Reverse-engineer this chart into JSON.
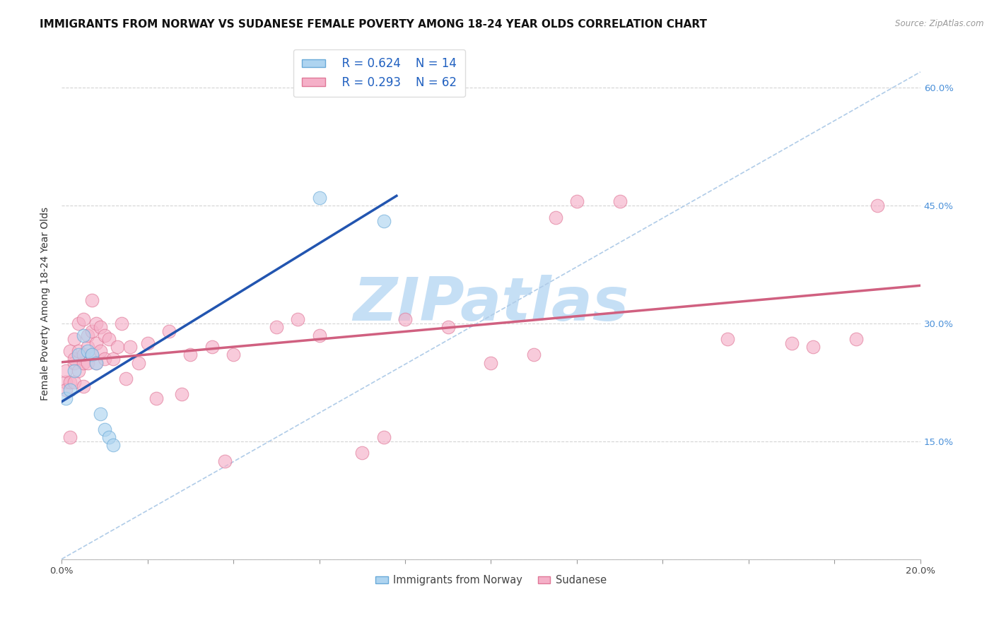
{
  "title": "IMMIGRANTS FROM NORWAY VS SUDANESE FEMALE POVERTY AMONG 18-24 YEAR OLDS CORRELATION CHART",
  "source": "Source: ZipAtlas.com",
  "ylabel": "Female Poverty Among 18-24 Year Olds",
  "xlim": [
    0.0,
    0.2
  ],
  "ylim": [
    0.0,
    0.65
  ],
  "ytick_vals": [
    0.0,
    0.15,
    0.3,
    0.45,
    0.6
  ],
  "ytick_labels": [
    "",
    "15.0%",
    "30.0%",
    "45.0%",
    "60.0%"
  ],
  "xtick_vals": [
    0.0,
    0.02,
    0.04,
    0.06,
    0.08,
    0.1,
    0.12,
    0.14,
    0.16,
    0.18,
    0.2
  ],
  "xtick_labels": [
    "0.0%",
    "",
    "",
    "",
    "",
    "",
    "",
    "",
    "",
    "",
    "20.0%"
  ],
  "watermark_text": "ZIPatlas",
  "watermark_color": "#c5dff5",
  "legend_R1": "R = 0.624",
  "legend_N1": "N = 14",
  "legend_R2": "R = 0.293",
  "legend_N2": "N = 62",
  "legend_label1": "Immigrants from Norway",
  "legend_label2": "Sudanese",
  "blue_scatter_face": "#aed4f0",
  "blue_scatter_edge": "#6aaad8",
  "pink_scatter_face": "#f5b0c8",
  "pink_scatter_edge": "#e07898",
  "blue_line_color": "#2255b0",
  "pink_line_color": "#d06080",
  "dashed_color": "#b0cce8",
  "norway_x": [
    0.001,
    0.002,
    0.003,
    0.004,
    0.005,
    0.006,
    0.007,
    0.008,
    0.009,
    0.01,
    0.011,
    0.012,
    0.06,
    0.075
  ],
  "norway_y": [
    0.205,
    0.215,
    0.24,
    0.26,
    0.285,
    0.265,
    0.26,
    0.25,
    0.185,
    0.165,
    0.155,
    0.145,
    0.46,
    0.43
  ],
  "sudan_x": [
    0.001,
    0.001,
    0.001,
    0.002,
    0.002,
    0.002,
    0.003,
    0.003,
    0.003,
    0.003,
    0.004,
    0.004,
    0.004,
    0.005,
    0.005,
    0.005,
    0.005,
    0.006,
    0.006,
    0.006,
    0.007,
    0.007,
    0.007,
    0.008,
    0.008,
    0.008,
    0.009,
    0.009,
    0.01,
    0.01,
    0.011,
    0.012,
    0.013,
    0.014,
    0.015,
    0.016,
    0.018,
    0.02,
    0.022,
    0.025,
    0.028,
    0.03,
    0.035,
    0.038,
    0.04,
    0.05,
    0.055,
    0.06,
    0.07,
    0.075,
    0.08,
    0.09,
    0.1,
    0.11,
    0.115,
    0.12,
    0.13,
    0.155,
    0.17,
    0.175,
    0.185,
    0.19
  ],
  "sudan_y": [
    0.225,
    0.24,
    0.215,
    0.155,
    0.225,
    0.265,
    0.25,
    0.225,
    0.255,
    0.28,
    0.24,
    0.265,
    0.3,
    0.25,
    0.22,
    0.26,
    0.305,
    0.25,
    0.27,
    0.285,
    0.26,
    0.29,
    0.33,
    0.25,
    0.275,
    0.3,
    0.265,
    0.295,
    0.255,
    0.285,
    0.28,
    0.255,
    0.27,
    0.3,
    0.23,
    0.27,
    0.25,
    0.275,
    0.205,
    0.29,
    0.21,
    0.26,
    0.27,
    0.125,
    0.26,
    0.295,
    0.305,
    0.285,
    0.135,
    0.155,
    0.305,
    0.295,
    0.25,
    0.26,
    0.435,
    0.455,
    0.455,
    0.28,
    0.275,
    0.27,
    0.28,
    0.45
  ],
  "title_fontsize": 11,
  "axis_label_fontsize": 10,
  "tick_fontsize": 9.5,
  "legend_fontsize": 12,
  "scatter_size": 180,
  "scatter_alpha": 0.65
}
